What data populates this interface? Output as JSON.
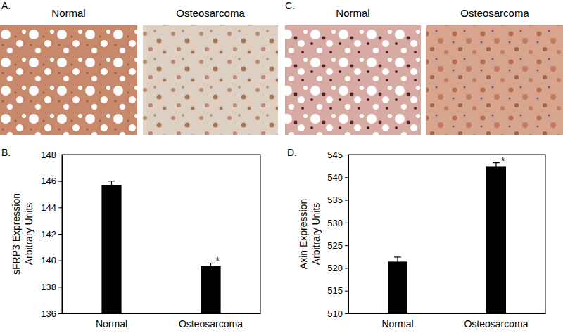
{
  "panels": [
    {
      "label": "A.",
      "captions": [
        "Normal",
        "Osteosarcoma"
      ]
    },
    {
      "label": "B."
    },
    {
      "label": "C.",
      "captions": [
        "Normal",
        "Osteosarcoma"
      ]
    },
    {
      "label": "D."
    }
  ],
  "chart_data": [
    {
      "type": "bar",
      "categories": [
        "Normal",
        "Osteosarcoma"
      ],
      "values": [
        145.7,
        139.6
      ],
      "errors": [
        0.3,
        0.2
      ],
      "color": "#000000",
      "ylabel": [
        "sFRP3 Expression",
        "Arbitrary Units"
      ],
      "ylim": [
        136,
        148
      ],
      "yticks": [
        136,
        138,
        140,
        142,
        144,
        146,
        148
      ],
      "grid": false,
      "annotations": [
        null,
        "*"
      ]
    },
    {
      "type": "bar",
      "categories": [
        "Normal",
        "Osteosarcoma"
      ],
      "values": [
        521.4,
        542.3
      ],
      "errors": [
        1.0,
        0.9
      ],
      "color": "#000000",
      "ylabel": [
        "Axin Expression",
        "Arbitrary Units"
      ],
      "ylim": [
        510,
        545
      ],
      "yticks": [
        510,
        515,
        520,
        525,
        530,
        535,
        540,
        545
      ],
      "grid": false,
      "annotations": [
        null,
        "*"
      ]
    }
  ]
}
